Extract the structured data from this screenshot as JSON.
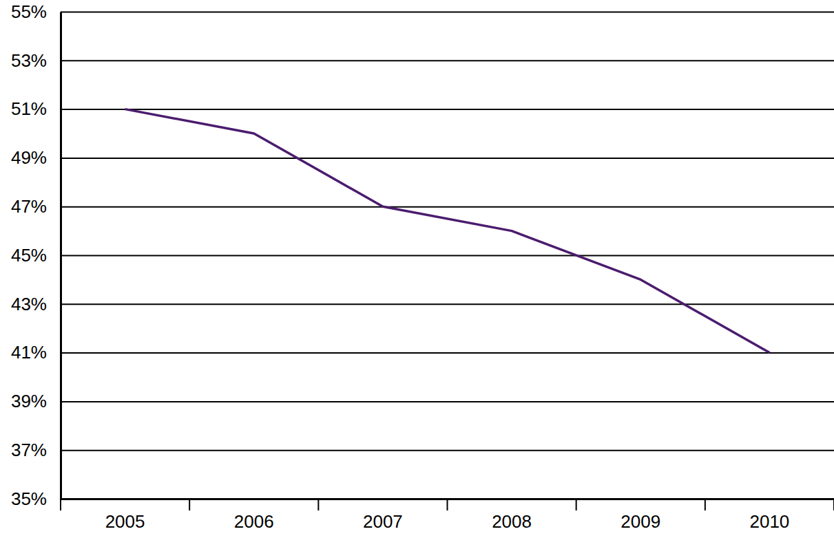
{
  "chart_data": {
    "type": "line",
    "categories": [
      "2005",
      "2006",
      "2007",
      "2008",
      "2009",
      "2010"
    ],
    "values": [
      51,
      50,
      47,
      46,
      44,
      41
    ],
    "color": "#4b1c6e",
    "ylim": [
      35,
      55
    ],
    "yticks": [
      {
        "value": 35,
        "label": "35%"
      },
      {
        "value": 37,
        "label": "37%"
      },
      {
        "value": 39,
        "label": "39%"
      },
      {
        "value": 41,
        "label": "41%"
      },
      {
        "value": 43,
        "label": "43%"
      },
      {
        "value": 45,
        "label": "45%"
      },
      {
        "value": 47,
        "label": "47%"
      },
      {
        "value": 49,
        "label": "49%"
      },
      {
        "value": 51,
        "label": "51%"
      },
      {
        "value": 53,
        "label": "53%"
      },
      {
        "value": 55,
        "label": "55%"
      }
    ],
    "grid": true
  }
}
